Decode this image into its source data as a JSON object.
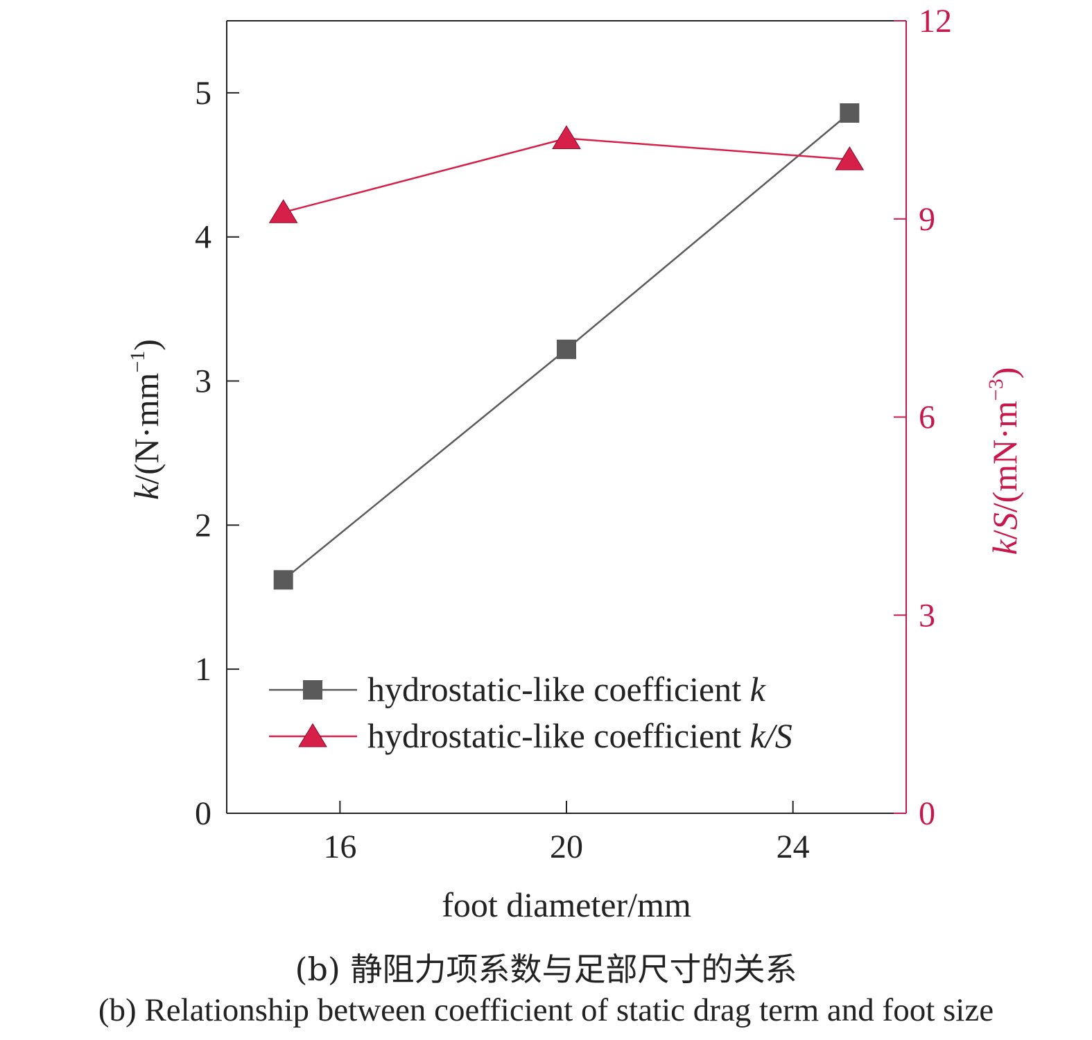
{
  "chart_data": {
    "type": "line",
    "x": [
      15,
      20,
      25
    ],
    "xlabel": "foot diameter/mm",
    "xticks": [
      "16",
      "20",
      "24"
    ],
    "xlim": [
      14,
      26
    ],
    "ylabel_left": {
      "italic": "k",
      "rest": "/(N·mm",
      "sup": "−1",
      "close": ")"
    },
    "ylim_left": [
      0,
      5.5
    ],
    "yticks_left": [
      "0",
      "1",
      "2",
      "3",
      "4",
      "5"
    ],
    "ylabel_right": {
      "italic1": "k",
      "slash": "/",
      "italic2": "S",
      "rest": "/(mN·m",
      "sup": "−3",
      "close": ")"
    },
    "ylim_right": [
      0,
      12
    ],
    "yticks_right": [
      "0",
      "3",
      "6",
      "9",
      "12"
    ],
    "series": [
      {
        "name": "hydrostatic-like coefficient k",
        "name_plain": "hydrostatic-like coefficient ",
        "name_italic": "k",
        "axis": "left",
        "marker": "square",
        "color": "#5a5a5a",
        "values": [
          1.62,
          3.22,
          4.86
        ]
      },
      {
        "name": "hydrostatic-like coefficient k/S",
        "name_plain": "hydrostatic-like coefficient ",
        "name_italic": "k/S",
        "axis": "right",
        "marker": "triangle",
        "color": "#d6204a",
        "values": [
          9.1,
          10.22,
          9.9
        ]
      }
    ],
    "legend": "bottom-left",
    "grid": false
  },
  "captions": {
    "cn": "(b) 静阻力项系数与足部尺寸的关系",
    "en": "(b) Relationship between coefficient of static drag term and foot size"
  },
  "colors": {
    "axis": "#222222",
    "right_axis": "#c8174a"
  }
}
